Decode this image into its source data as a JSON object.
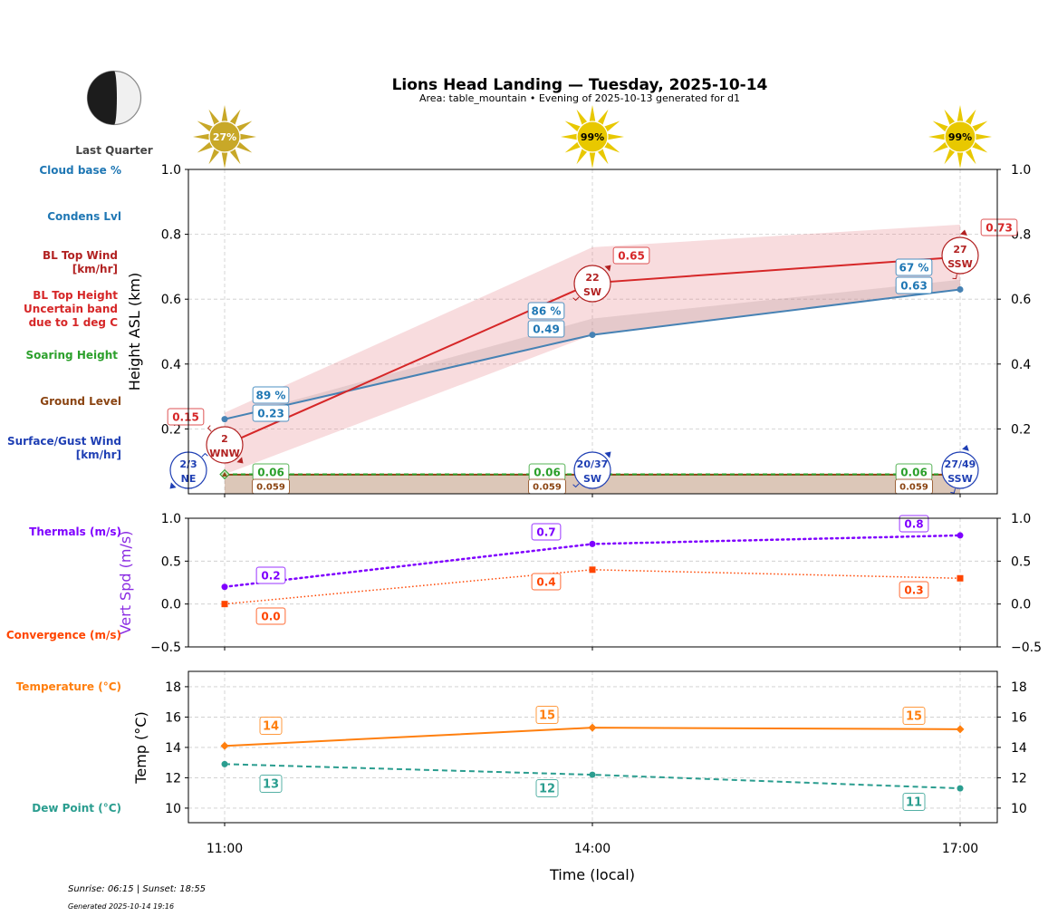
{
  "header": {
    "title": "Lions Head Landing — Tuesday, 2025-10-14",
    "subtitle": "Area: table_mountain • Evening of 2025-10-13 generated for d1",
    "moon_phase": "Last Quarter"
  },
  "sun_badges": [
    "27%",
    "99%",
    "99%"
  ],
  "sun_values": [
    27,
    99,
    99
  ],
  "colors": {
    "cloud_base": "#1f77b4",
    "bl_top": "#d62728",
    "bl_top_text": "#b22222",
    "soaring": "#2ca02c",
    "ground": "#8b4513",
    "surface_wind": "#1f3fb4",
    "thermals": "#7f00ff",
    "convergence": "#ff4500",
    "temperature": "#ff7f0e",
    "dew_point": "#2a9d8f"
  },
  "left_labels": {
    "cloud_base": "Cloud base %",
    "condens": "Condens Lvl",
    "bl_wind_1": "BL Top Wind",
    "bl_wind_2": "[km/hr]",
    "bl_height_1": "BL Top Height",
    "bl_height_2": "Uncertain band",
    "bl_height_3": "due to 1 deg C",
    "soaring": "Soaring Height",
    "ground": "Ground Level",
    "surface_1": "Surface/Gust Wind",
    "surface_2": "[km/hr]",
    "thermals": "Thermals (m/s)",
    "convergence": "Convergence (m/s)",
    "temperature": "Temperature (°C)",
    "dew_point": "Dew Point (°C)"
  },
  "footer": {
    "sun_times": "Sunrise: 06:15 | Sunset: 18:55",
    "generated": "Generated 2025-10-14 19:16"
  },
  "chart_data": [
    {
      "type": "line",
      "title": "Lions Head Landing — Tuesday, 2025-10-14",
      "ylabel": "Height ASL (km)",
      "ylim": [
        0,
        1.0
      ],
      "yticks": [
        "0.2",
        "0.4",
        "0.6",
        "0.8",
        "1.0"
      ],
      "ytick_values": [
        0.2,
        0.4,
        0.6,
        0.8,
        1.0
      ],
      "categories": [
        "11:00",
        "14:00",
        "17:00"
      ],
      "grid": true,
      "series": [
        {
          "name": "BL Top Height",
          "values": [
            0.15,
            0.65,
            0.73
          ],
          "labels": [
            "0.15",
            "0.65",
            "0.73"
          ],
          "band_low": [
            0.06,
            0.49,
            0.63
          ],
          "band_high": [
            0.25,
            0.76,
            0.83
          ]
        },
        {
          "name": "Condens Lvl",
          "values": [
            0.23,
            0.49,
            0.63
          ],
          "labels": [
            "0.23",
            "0.49",
            "0.63"
          ]
        },
        {
          "name": "Cloud base %",
          "values": [
            89,
            86,
            67
          ],
          "labels": [
            "89 %",
            "86 %",
            "67 %"
          ]
        },
        {
          "name": "Soaring Height",
          "values": [
            0.06,
            0.06,
            0.06
          ],
          "labels": [
            "0.06",
            "0.06",
            "0.06"
          ]
        },
        {
          "name": "Ground Level",
          "values": [
            0.059,
            0.059,
            0.059
          ],
          "labels": [
            "0.059",
            "0.059",
            "0.059"
          ]
        },
        {
          "name": "BL Top Wind",
          "speed": [
            "2",
            "22",
            "27"
          ],
          "direction": [
            "WNW",
            "SW",
            "SSW"
          ]
        },
        {
          "name": "Surface/Gust Wind",
          "speed": [
            "2/3",
            "20/37",
            "27/49"
          ],
          "direction": [
            "NE",
            "SW",
            "SSW"
          ]
        }
      ]
    },
    {
      "type": "line",
      "ylabel": "Vert Spd (m/s)",
      "ylim": [
        -0.5,
        1.0
      ],
      "yticks": [
        "−0.5",
        "0.0",
        "0.5",
        "1.0"
      ],
      "ytick_values": [
        -0.5,
        0.0,
        0.5,
        1.0
      ],
      "categories": [
        "11:00",
        "14:00",
        "17:00"
      ],
      "grid": true,
      "series": [
        {
          "name": "Thermals (m/s)",
          "values": [
            0.2,
            0.7,
            0.8
          ],
          "labels": [
            "0.2",
            "0.7",
            "0.8"
          ]
        },
        {
          "name": "Convergence (m/s)",
          "values": [
            0.0,
            0.4,
            0.3
          ],
          "labels": [
            "0.0",
            "0.4",
            "0.3"
          ]
        }
      ]
    },
    {
      "type": "line",
      "ylabel": "Temp (°C)",
      "xlabel": "Time (local)",
      "ylim": [
        9.04,
        19.01
      ],
      "yticks": [
        "10",
        "12",
        "14",
        "16",
        "18"
      ],
      "ytick_values": [
        10,
        12,
        14,
        16,
        18
      ],
      "categories": [
        "11:00",
        "14:00",
        "17:00"
      ],
      "grid": true,
      "series": [
        {
          "name": "Temperature (°C)",
          "values": [
            14.1,
            15.3,
            15.2
          ],
          "labels": [
            "14",
            "15",
            "15"
          ]
        },
        {
          "name": "Dew Point (°C)",
          "values": [
            12.9,
            12.2,
            11.3
          ],
          "labels": [
            "13",
            "12",
            "11"
          ]
        }
      ]
    }
  ]
}
